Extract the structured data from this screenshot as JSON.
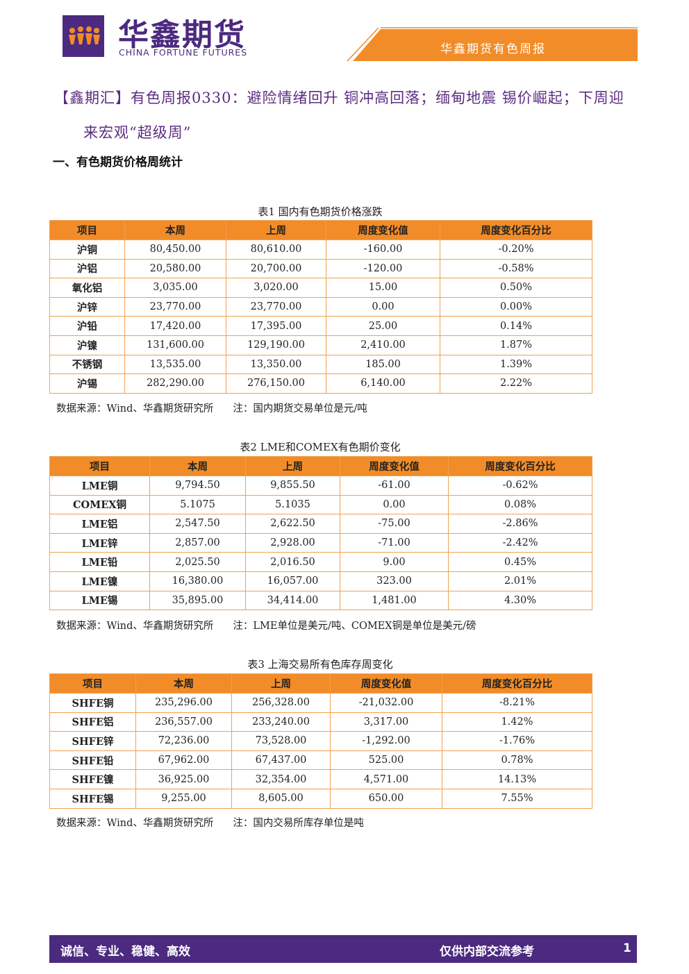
{
  "header": {
    "logo_cn": "华鑫期货",
    "logo_en": "CHINA FORTUNE FUTURES",
    "banner": "华鑫期货有色周报"
  },
  "title": "【鑫期汇】有色周报0330：避险情绪回升 铜冲高回落；缅甸地震 锡价崛起；下周迎来宏观“超级周”",
  "section": "一、有色期货价格周统计",
  "tables": [
    {
      "caption": "表1  国内有色期货价格涨跌",
      "header": [
        "项目",
        "本周",
        "上周",
        "周度变化值",
        "周度变化百分比"
      ],
      "rows": [
        [
          "沪铜",
          "80,450.00",
          "80,610.00",
          "-160.00",
          "-0.20%"
        ],
        [
          "沪铝",
          "20,580.00",
          "20,700.00",
          "-120.00",
          "-0.58%"
        ],
        [
          "氧化铝",
          "3,035.00",
          "3,020.00",
          "15.00",
          "0.50%"
        ],
        [
          "沪锌",
          "23,770.00",
          "23,770.00",
          "0.00",
          "0.00%"
        ],
        [
          "沪铅",
          "17,420.00",
          "17,395.00",
          "25.00",
          "0.14%"
        ],
        [
          "沪镍",
          "131,600.00",
          "129,190.00",
          "2,410.00",
          "1.87%"
        ],
        [
          "不锈钢",
          "13,535.00",
          "13,350.00",
          "185.00",
          "1.39%"
        ],
        [
          "沪锡",
          "282,290.00",
          "276,150.00",
          "6,140.00",
          "2.22%"
        ]
      ],
      "source": "数据来源：Wind、华鑫期货研究所",
      "note": "注：国内期货交易单位是元/吨"
    },
    {
      "caption": "表2 LME和COMEX有色期价变化",
      "header": [
        "项目",
        "本周",
        "上周",
        "周度变化值",
        "周度变化百分比"
      ],
      "rows": [
        [
          "LME铜",
          "9,794.50",
          "9,855.50",
          "-61.00",
          "-0.62%"
        ],
        [
          "COMEX铜",
          "5.1075",
          "5.1035",
          "0.00",
          "0.08%"
        ],
        [
          "LME铝",
          "2,547.50",
          "2,622.50",
          "-75.00",
          "-2.86%"
        ],
        [
          "LME锌",
          "2,857.00",
          "2,928.00",
          "-71.00",
          "-2.42%"
        ],
        [
          "LME铅",
          "2,025.50",
          "2,016.50",
          "9.00",
          "0.45%"
        ],
        [
          "LME镍",
          "16,380.00",
          "16,057.00",
          "323.00",
          "2.01%"
        ],
        [
          "LME锡",
          "35,895.00",
          "34,414.00",
          "1,481.00",
          "4.30%"
        ]
      ],
      "source": "数据来源：Wind、华鑫期货研究所",
      "note": "注：LME单位是美元/吨、COMEX铜是单位是美元/磅"
    },
    {
      "caption": "表3 上海交易所有色库存周变化",
      "header": [
        "项目",
        "本周",
        "上周",
        "周度变化值",
        "周度变化百分比"
      ],
      "rows": [
        [
          "SHFE铜",
          "235,296.00",
          "256,328.00",
          "-21,032.00",
          "-8.21%"
        ],
        [
          "SHFE铝",
          "236,557.00",
          "233,240.00",
          "3,317.00",
          "1.42%"
        ],
        [
          "SHFE锌",
          "72,236.00",
          "73,528.00",
          "-1,292.00",
          "-1.76%"
        ],
        [
          "SHFE铅",
          "67,962.00",
          "67,437.00",
          "525.00",
          "0.78%"
        ],
        [
          "SHFE镍",
          "36,925.00",
          "32,354.00",
          "4,571.00",
          "14.13%"
        ],
        [
          "SHFE锡",
          "9,255.00",
          "8,605.00",
          "650.00",
          "7.55%"
        ]
      ],
      "source": "数据来源：Wind、华鑫期货研究所",
      "note": "注：国内交易所库存单位是吨"
    }
  ],
  "footer": {
    "slogan": "诚信、专业、稳健、高效",
    "notice": "仅供内部交流参考",
    "page": "1"
  }
}
